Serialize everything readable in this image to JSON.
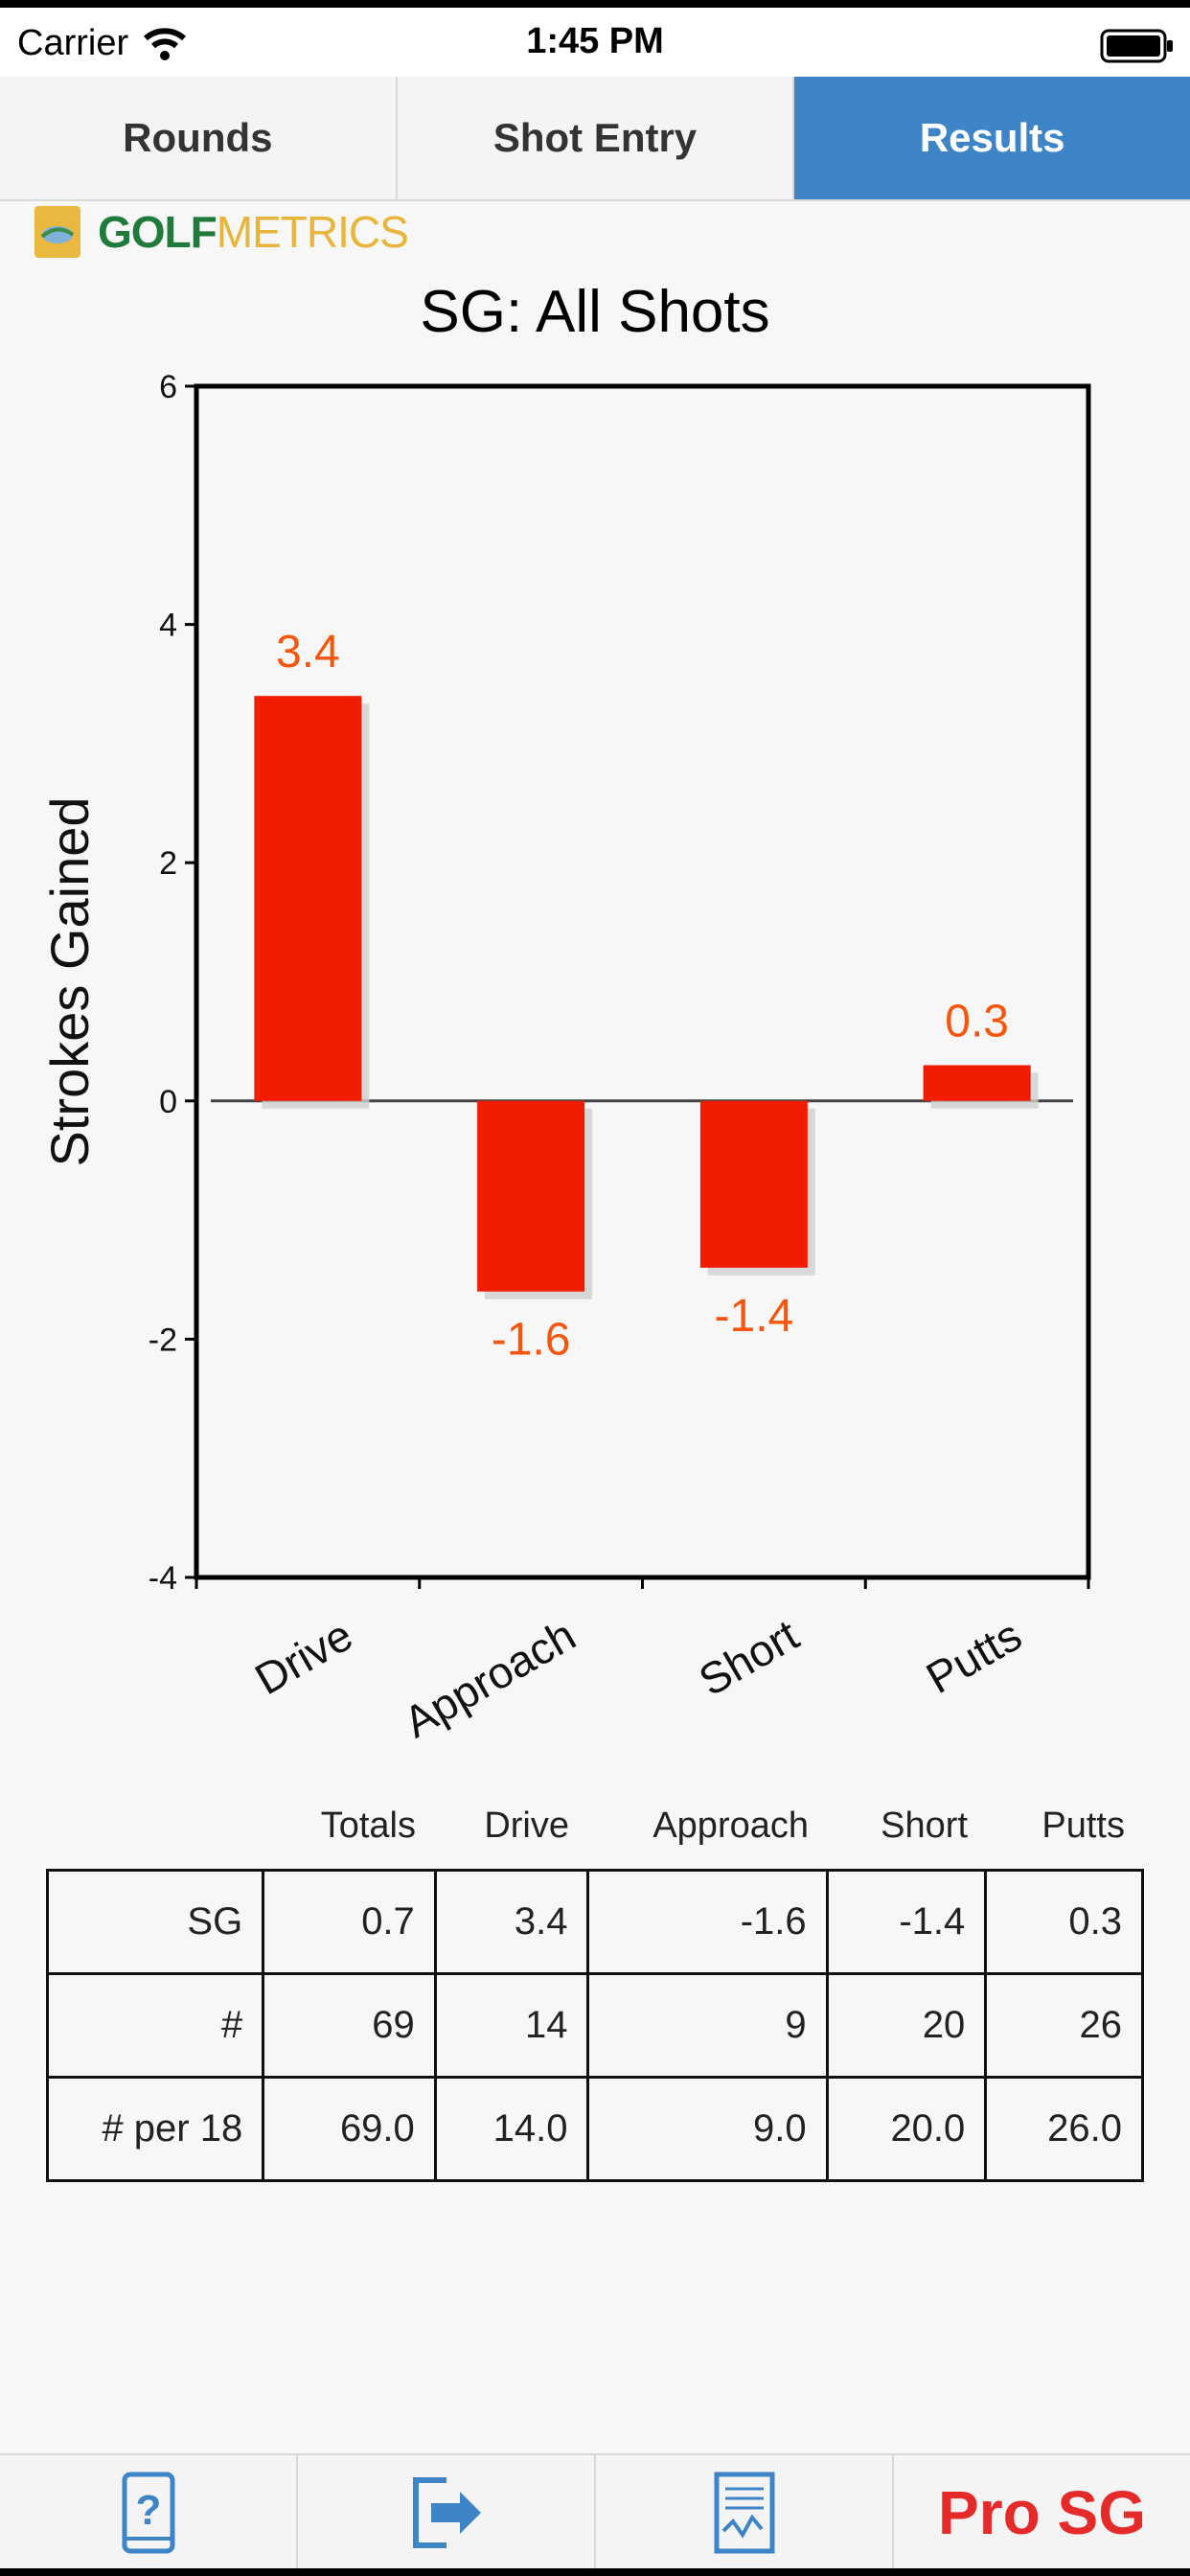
{
  "status": {
    "carrier": "Carrier",
    "time": "1:45 PM"
  },
  "tabs": [
    {
      "label": "Rounds",
      "active": false
    },
    {
      "label": "Shot Entry",
      "active": false
    },
    {
      "label": "Results",
      "active": true
    }
  ],
  "logo": {
    "part1": "GOLF",
    "part2": "METRICS"
  },
  "chart_data": {
    "type": "bar",
    "title": "SG: All Shots",
    "ylabel": "Strokes Gained",
    "xlabel": "",
    "categories": [
      "Drive",
      "Approach",
      "Short",
      "Putts"
    ],
    "values": [
      3.4,
      -1.6,
      -1.4,
      0.3
    ],
    "data_labels": [
      "3.4",
      "-1.6",
      "-1.4",
      "0.3"
    ],
    "ylim": [
      -4,
      6
    ],
    "yticks": [
      6,
      4,
      2,
      0,
      -2,
      -4
    ],
    "bar_color": "#f21d00",
    "label_color": "#f5550c",
    "grid": false,
    "legend": "none"
  },
  "table": {
    "headers": [
      "",
      "Totals",
      "Drive",
      "Approach",
      "Short",
      "Putts"
    ],
    "rows": [
      [
        "SG",
        "0.7",
        "3.4",
        "-1.6",
        "-1.4",
        "0.3"
      ],
      [
        "#",
        "69",
        "14",
        "9",
        "20",
        "26"
      ],
      [
        "# per 18",
        "69.0",
        "14.0",
        "9.0",
        "20.0",
        "26.0"
      ]
    ]
  },
  "bottom_bar": [
    {
      "icon": "help-phone-icon"
    },
    {
      "icon": "export-icon"
    },
    {
      "icon": "report-icon"
    },
    {
      "label": "Pro SG"
    }
  ],
  "colors": {
    "accent": "#3d85c6",
    "pro": "#e52a2a"
  }
}
